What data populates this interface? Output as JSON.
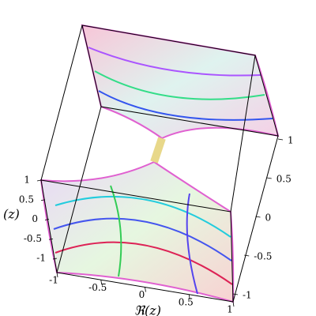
{
  "chart_data": {
    "type": "surface3d",
    "xlabel": "ℜ(z)",
    "ylabel": "(z)",
    "xlim": [
      -1,
      1
    ],
    "xticks": [
      -1,
      -0.5,
      0,
      0.5,
      1
    ],
    "ylim": [
      -1,
      1
    ],
    "yticks": [
      -1,
      -0.5,
      0,
      0.5,
      1
    ],
    "zlim": [
      -1,
      1
    ],
    "zticks": [
      -1,
      -0.5,
      0,
      0.5,
      1
    ]
  }
}
